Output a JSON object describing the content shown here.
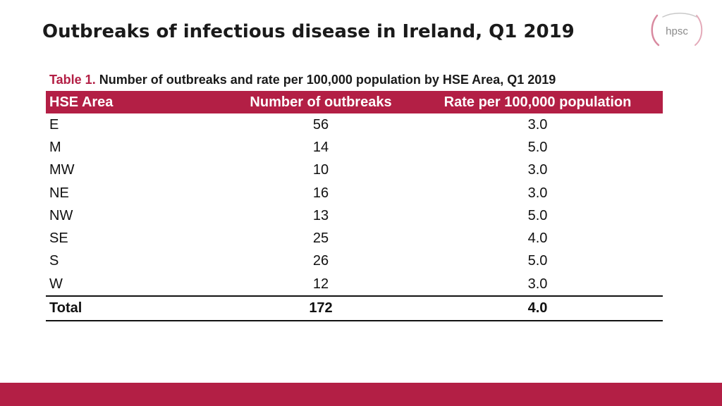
{
  "slide": {
    "title": "Outbreaks of infectious disease in Ireland, Q1 2019",
    "logo_text": "hpsc",
    "accent_color": "#b31f45"
  },
  "table": {
    "caption_label": "Table 1.",
    "caption_text": "Number of outbreaks and rate per 100,000 population by HSE Area, Q1 2019",
    "headers": [
      "HSE Area",
      "Number of outbreaks",
      "Rate per 100,000 population"
    ],
    "rows": [
      [
        "E",
        "56",
        "3.0"
      ],
      [
        "M",
        "14",
        "5.0"
      ],
      [
        "MW",
        "10",
        "3.0"
      ],
      [
        "NE",
        "16",
        "3.0"
      ],
      [
        "NW",
        "13",
        "5.0"
      ],
      [
        "SE",
        "25",
        "4.0"
      ],
      [
        "S",
        "26",
        "5.0"
      ],
      [
        "W",
        "12",
        "3.0"
      ]
    ],
    "total": [
      "Total",
      "172",
      "4.0"
    ]
  }
}
